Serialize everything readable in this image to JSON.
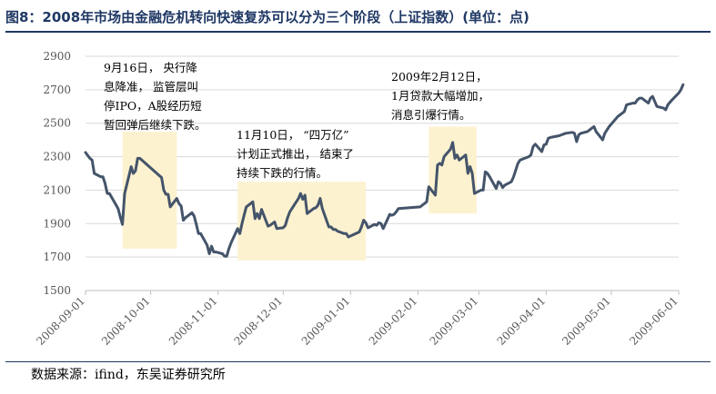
{
  "header": {
    "title": "图8：2008年市场由金融危机转向快速复苏可以分为三个阶段（上证指数）(单位：点)"
  },
  "footer": {
    "source": "数据来源：ifind，东吴证券研究所"
  },
  "colors": {
    "line": "#44546a",
    "highlight": "#fdf2d0",
    "grid": "#d9d9d9",
    "title": "#1f3864"
  },
  "chart_data": {
    "type": "line",
    "title": "",
    "xlabel": "",
    "ylabel": "",
    "ylim": [
      1500,
      2900
    ],
    "yticks": [
      1500,
      1700,
      1900,
      2100,
      2300,
      2500,
      2700,
      2900
    ],
    "xticks": [
      "2008-09-01",
      "2008-10-01",
      "2008-11-01",
      "2008-12-01",
      "2009-01-01",
      "2009-02-01",
      "2009-03-01",
      "2009-04-01",
      "2009-05-01",
      "2009-06-01"
    ],
    "xlim": [
      "2008-09-01",
      "2009-06-01"
    ],
    "grid": "horizontal",
    "series": [
      {
        "points": [
          [
            "2008-09-01",
            2325
          ],
          [
            "2008-09-03",
            2290
          ],
          [
            "2008-09-04",
            2280
          ],
          [
            "2008-09-05",
            2200
          ],
          [
            "2008-09-08",
            2180
          ],
          [
            "2008-09-09",
            2180
          ],
          [
            "2008-09-10",
            2140
          ],
          [
            "2008-09-11",
            2080
          ],
          [
            "2008-09-12",
            2080
          ],
          [
            "2008-09-16",
            1990
          ],
          [
            "2008-09-17",
            1940
          ],
          [
            "2008-09-18",
            1895
          ],
          [
            "2008-09-19",
            2080
          ],
          [
            "2008-09-22",
            2240
          ],
          [
            "2008-09-23",
            2200
          ],
          [
            "2008-09-24",
            2215
          ],
          [
            "2008-09-25",
            2290
          ],
          [
            "2008-09-26",
            2290
          ],
          [
            "2008-10-06",
            2175
          ],
          [
            "2008-10-07",
            2100
          ],
          [
            "2008-10-08",
            2075
          ],
          [
            "2008-10-09",
            2075
          ],
          [
            "2008-10-10",
            2000
          ],
          [
            "2008-10-13",
            2050
          ],
          [
            "2008-10-14",
            2020
          ],
          [
            "2008-10-15",
            2005
          ],
          [
            "2008-10-16",
            1920
          ],
          [
            "2008-10-17",
            1935
          ],
          [
            "2008-10-20",
            1965
          ],
          [
            "2008-10-21",
            1945
          ],
          [
            "2008-10-22",
            1895
          ],
          [
            "2008-10-23",
            1840
          ],
          [
            "2008-10-24",
            1840
          ],
          [
            "2008-10-27",
            1770
          ],
          [
            "2008-10-28",
            1720
          ],
          [
            "2008-10-29",
            1765
          ],
          [
            "2008-10-30",
            1730
          ],
          [
            "2008-10-31",
            1730
          ],
          [
            "2008-11-03",
            1720
          ],
          [
            "2008-11-04",
            1705
          ],
          [
            "2008-11-05",
            1705
          ],
          [
            "2008-11-06",
            1750
          ],
          [
            "2008-11-07",
            1785
          ],
          [
            "2008-11-10",
            1870
          ],
          [
            "2008-11-11",
            1840
          ],
          [
            "2008-11-12",
            1900
          ],
          [
            "2008-11-13",
            1950
          ],
          [
            "2008-11-14",
            2000
          ],
          [
            "2008-11-17",
            2030
          ],
          [
            "2008-11-18",
            1930
          ],
          [
            "2008-11-19",
            1960
          ],
          [
            "2008-11-20",
            1930
          ],
          [
            "2008-11-21",
            1985
          ],
          [
            "2008-11-24",
            1885
          ],
          [
            "2008-11-25",
            1890
          ],
          [
            "2008-11-26",
            1900
          ],
          [
            "2008-11-27",
            1910
          ],
          [
            "2008-11-28",
            1870
          ],
          [
            "2008-12-01",
            1875
          ],
          [
            "2008-12-02",
            1890
          ],
          [
            "2008-12-03",
            1935
          ],
          [
            "2008-12-04",
            1970
          ],
          [
            "2008-12-05",
            1990
          ],
          [
            "2008-12-08",
            2050
          ],
          [
            "2008-12-09",
            2080
          ],
          [
            "2008-12-10",
            2045
          ],
          [
            "2008-12-11",
            2070
          ],
          [
            "2008-12-12",
            1960
          ],
          [
            "2008-12-15",
            1990
          ],
          [
            "2008-12-16",
            1995
          ],
          [
            "2008-12-17",
            2010
          ],
          [
            "2008-12-18",
            2050
          ],
          [
            "2008-12-19",
            1990
          ],
          [
            "2008-12-22",
            1880
          ],
          [
            "2008-12-23",
            1880
          ],
          [
            "2008-12-24",
            1865
          ],
          [
            "2008-12-25",
            1865
          ],
          [
            "2008-12-26",
            1855
          ],
          [
            "2008-12-29",
            1840
          ],
          [
            "2008-12-30",
            1840
          ],
          [
            "2008-12-31",
            1820
          ],
          [
            "2009-01-05",
            1850
          ],
          [
            "2009-01-06",
            1880
          ],
          [
            "2009-01-07",
            1920
          ],
          [
            "2009-01-08",
            1905
          ],
          [
            "2009-01-09",
            1875
          ],
          [
            "2009-01-12",
            1895
          ],
          [
            "2009-01-13",
            1890
          ],
          [
            "2009-01-14",
            1905
          ],
          [
            "2009-01-15",
            1900
          ],
          [
            "2009-01-16",
            1870
          ],
          [
            "2009-01-19",
            1955
          ],
          [
            "2009-01-20",
            1950
          ],
          [
            "2009-01-21",
            1955
          ],
          [
            "2009-01-22",
            1970
          ],
          [
            "2009-01-23",
            1990
          ],
          [
            "2009-02-02",
            2000
          ],
          [
            "2009-02-03",
            2010
          ],
          [
            "2009-02-04",
            2020
          ],
          [
            "2009-02-05",
            2030
          ],
          [
            "2009-02-06",
            2120
          ],
          [
            "2009-02-09",
            2070
          ],
          [
            "2009-02-10",
            2250
          ],
          [
            "2009-02-11",
            2260
          ],
          [
            "2009-02-12",
            2250
          ],
          [
            "2009-02-13",
            2300
          ],
          [
            "2009-02-16",
            2345
          ],
          [
            "2009-02-17",
            2385
          ],
          [
            "2009-02-18",
            2290
          ],
          [
            "2009-02-19",
            2310
          ],
          [
            "2009-02-20",
            2280
          ],
          [
            "2009-02-23",
            2310
          ],
          [
            "2009-02-24",
            2200
          ],
          [
            "2009-02-25",
            2240
          ],
          [
            "2009-02-26",
            2200
          ],
          [
            "2009-02-27",
            2080
          ],
          [
            "2009-03-02",
            2100
          ],
          [
            "2009-03-03",
            2100
          ],
          [
            "2009-03-04",
            2210
          ],
          [
            "2009-03-05",
            2200
          ],
          [
            "2009-03-06",
            2180
          ],
          [
            "2009-03-09",
            2110
          ],
          [
            "2009-03-10",
            2150
          ],
          [
            "2009-03-11",
            2140
          ],
          [
            "2009-03-12",
            2115
          ],
          [
            "2009-03-13",
            2130
          ],
          [
            "2009-03-16",
            2150
          ],
          [
            "2009-03-17",
            2180
          ],
          [
            "2009-03-18",
            2220
          ],
          [
            "2009-03-19",
            2260
          ],
          [
            "2009-03-20",
            2280
          ],
          [
            "2009-03-23",
            2295
          ],
          [
            "2009-03-24",
            2300
          ],
          [
            "2009-03-25",
            2310
          ],
          [
            "2009-03-26",
            2360
          ],
          [
            "2009-03-27",
            2375
          ],
          [
            "2009-03-30",
            2330
          ],
          [
            "2009-03-31",
            2370
          ],
          [
            "2009-04-01",
            2375
          ],
          [
            "2009-04-02",
            2410
          ],
          [
            "2009-04-03",
            2415
          ],
          [
            "2009-04-07",
            2425
          ],
          [
            "2009-04-08",
            2430
          ],
          [
            "2009-04-09",
            2435
          ],
          [
            "2009-04-10",
            2440
          ],
          [
            "2009-04-13",
            2445
          ],
          [
            "2009-04-14",
            2440
          ],
          [
            "2009-04-15",
            2390
          ],
          [
            "2009-04-16",
            2430
          ],
          [
            "2009-04-17",
            2440
          ],
          [
            "2009-04-20",
            2450
          ],
          [
            "2009-04-21",
            2460
          ],
          [
            "2009-04-22",
            2470
          ],
          [
            "2009-04-23",
            2480
          ],
          [
            "2009-04-24",
            2450
          ],
          [
            "2009-04-27",
            2400
          ],
          [
            "2009-04-28",
            2440
          ],
          [
            "2009-04-29",
            2460
          ],
          [
            "2009-04-30",
            2480
          ],
          [
            "2009-05-04",
            2540
          ],
          [
            "2009-05-05",
            2550
          ],
          [
            "2009-05-06",
            2560
          ],
          [
            "2009-05-07",
            2570
          ],
          [
            "2009-05-08",
            2610
          ],
          [
            "2009-05-11",
            2620
          ],
          [
            "2009-05-12",
            2620
          ],
          [
            "2009-05-13",
            2640
          ],
          [
            "2009-05-14",
            2650
          ],
          [
            "2009-05-15",
            2650
          ],
          [
            "2009-05-18",
            2620
          ],
          [
            "2009-05-19",
            2650
          ],
          [
            "2009-05-20",
            2660
          ],
          [
            "2009-05-21",
            2630
          ],
          [
            "2009-05-22",
            2600
          ],
          [
            "2009-05-25",
            2590
          ],
          [
            "2009-05-26",
            2580
          ],
          [
            "2009-05-27",
            2610
          ],
          [
            "2009-05-29",
            2640
          ],
          [
            "2009-06-01",
            2680
          ],
          [
            "2009-06-02",
            2700
          ],
          [
            "2009-06-03",
            2730
          ]
        ]
      }
    ],
    "highlights": [
      {
        "x_start": "2008-09-18",
        "x_end": "2008-10-13",
        "y_low": 1750,
        "y_high": 2450
      },
      {
        "x_start": "2008-11-10",
        "x_end": "2009-01-08",
        "y_low": 1680,
        "y_high": 2150
      },
      {
        "x_start": "2009-02-06",
        "x_end": "2009-02-28",
        "y_low": 1960,
        "y_high": 2480
      }
    ],
    "annotations": [
      {
        "lines": [
          "9月16日，  央行降",
          "息降准，  监管层叫",
          "停IPO，A股经历短",
          "暂回弹后继续下跌。"
        ]
      },
      {
        "lines": [
          "11月10日，  “四万亿”",
          "计划正式推出，  结束了",
          "持续下跌的行情。"
        ]
      },
      {
        "lines": [
          "2009年2月12日，",
          "1月贷款大幅增加，",
          "消息引爆行情。"
        ]
      }
    ]
  }
}
